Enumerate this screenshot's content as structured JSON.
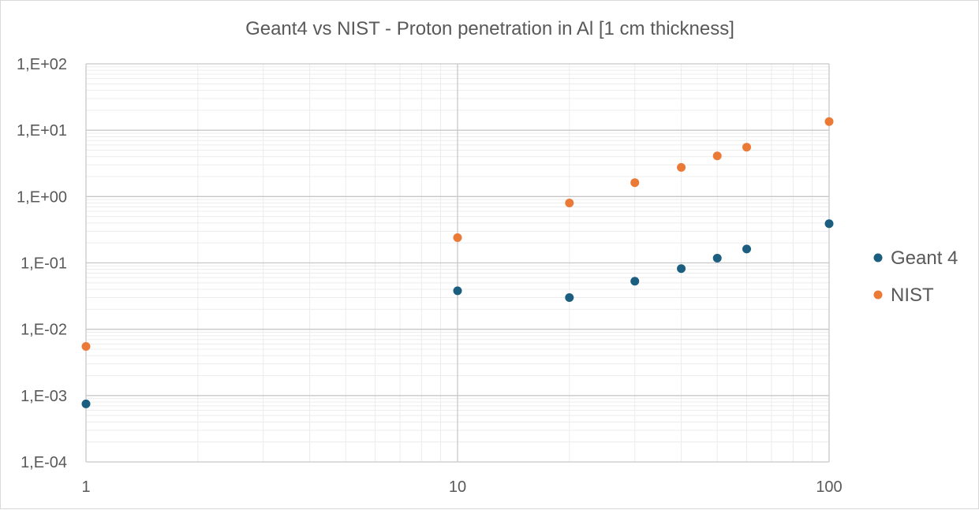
{
  "chart_data": {
    "type": "scatter",
    "title": "Geant4 vs NIST - Proton penetration in Al [1 cm thickness]",
    "xlabel": "",
    "ylabel": "",
    "xscale": "log",
    "yscale": "log",
    "xlim": [
      1,
      100
    ],
    "ylim": [
      0.0001,
      100
    ],
    "grid": true,
    "legend_position": "right",
    "x_tick_labels": [
      "1",
      "10",
      "100"
    ],
    "y_tick_labels": [
      "1,E-04",
      "1,E-03",
      "1,E-02",
      "1,E-01",
      "1,E+00",
      "1,E+01",
      "1,E+02"
    ],
    "series": [
      {
        "name": "Geant 4",
        "color": "#1b5e7f",
        "x": [
          1,
          10,
          20,
          30,
          40,
          50,
          60,
          100
        ],
        "y": [
          0.00075,
          0.038,
          0.03,
          0.053,
          0.082,
          0.118,
          0.162,
          0.39
        ]
      },
      {
        "name": "NIST",
        "color": "#ea7a36",
        "x": [
          1,
          10,
          20,
          30,
          40,
          50,
          60,
          100
        ],
        "y": [
          0.0055,
          0.24,
          0.8,
          1.62,
          2.75,
          4.1,
          5.55,
          13.5
        ]
      }
    ]
  }
}
